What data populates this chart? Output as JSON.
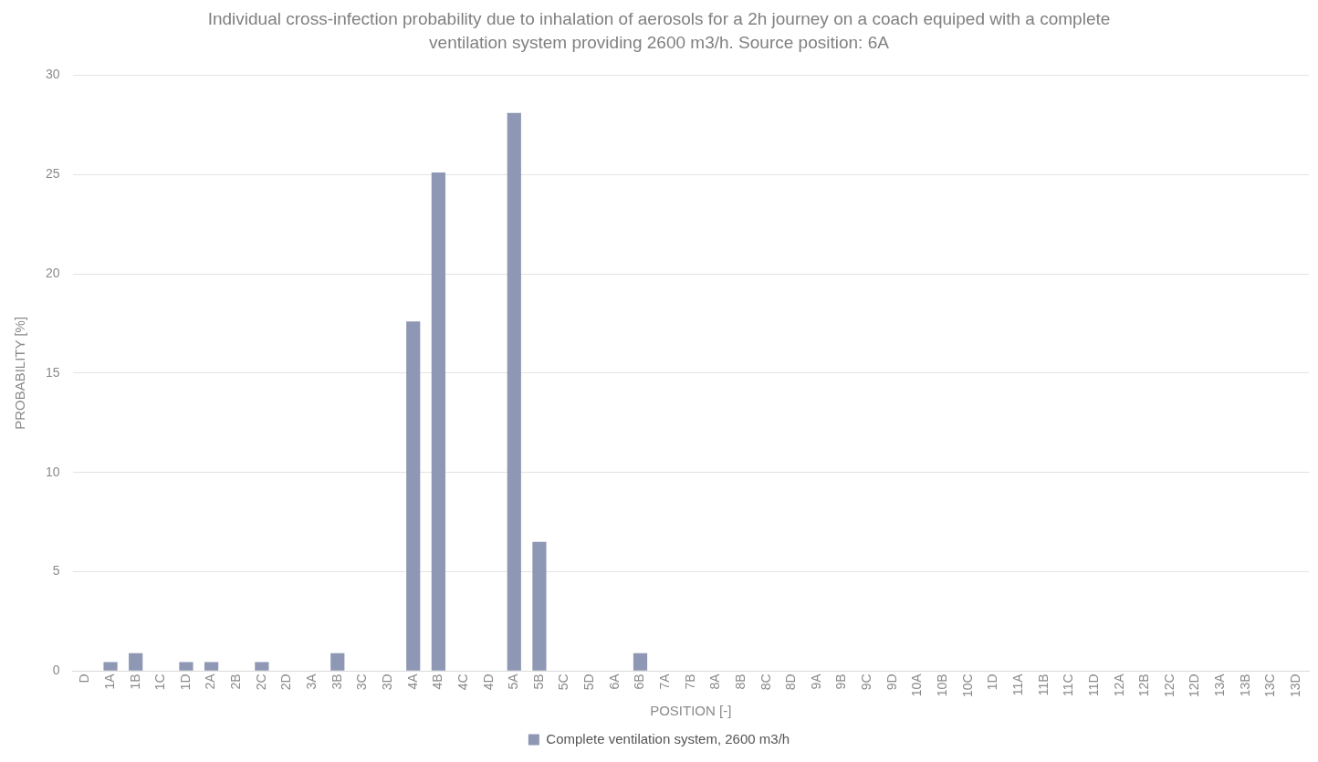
{
  "chart_data": {
    "type": "bar",
    "title": "Individual cross-infection probability due to inhalation of aerosols for a 2h journey on a coach equiped with a complete ventilation system providing 2600 m3/h. Source position: 6A",
    "xlabel": "POSITION [-]",
    "ylabel": "PROBABILITY [%]",
    "categories": [
      "D",
      "1A",
      "1B",
      "1C",
      "1D",
      "2A",
      "2B",
      "2C",
      "2D",
      "3A",
      "3B",
      "3C",
      "3D",
      "4A",
      "4B",
      "4C",
      "4D",
      "5A",
      "5B",
      "5C",
      "5D",
      "6A",
      "6B",
      "7A",
      "7B",
      "8A",
      "8B",
      "8C",
      "8D",
      "9A",
      "9B",
      "9C",
      "9D",
      "10A",
      "10B",
      "10C",
      "1D",
      "11A",
      "11B",
      "11C",
      "11D",
      "12A",
      "12B",
      "12C",
      "12D",
      "13A",
      "13B",
      "13C",
      "13D"
    ],
    "series": [
      {
        "name": "Complete ventilation system, 2600 m3/h",
        "color": "#8e97b3",
        "values": [
          0,
          0.45,
          0.9,
          0,
          0.45,
          0.45,
          0,
          0.45,
          0,
          0,
          0.9,
          0,
          0,
          17.6,
          25.1,
          0,
          0,
          28.1,
          6.5,
          0,
          0,
          0,
          0.9,
          0,
          0,
          0,
          0,
          0,
          0,
          0,
          0,
          0,
          0,
          0,
          0,
          0,
          0,
          0,
          0,
          0,
          0,
          0,
          0,
          0,
          0,
          0,
          0,
          0,
          0
        ]
      }
    ],
    "ylim": [
      0,
      30
    ],
    "yticks": [
      0,
      5,
      10,
      15,
      20,
      25,
      30
    ],
    "grid": "y",
    "legend": "bottom"
  }
}
